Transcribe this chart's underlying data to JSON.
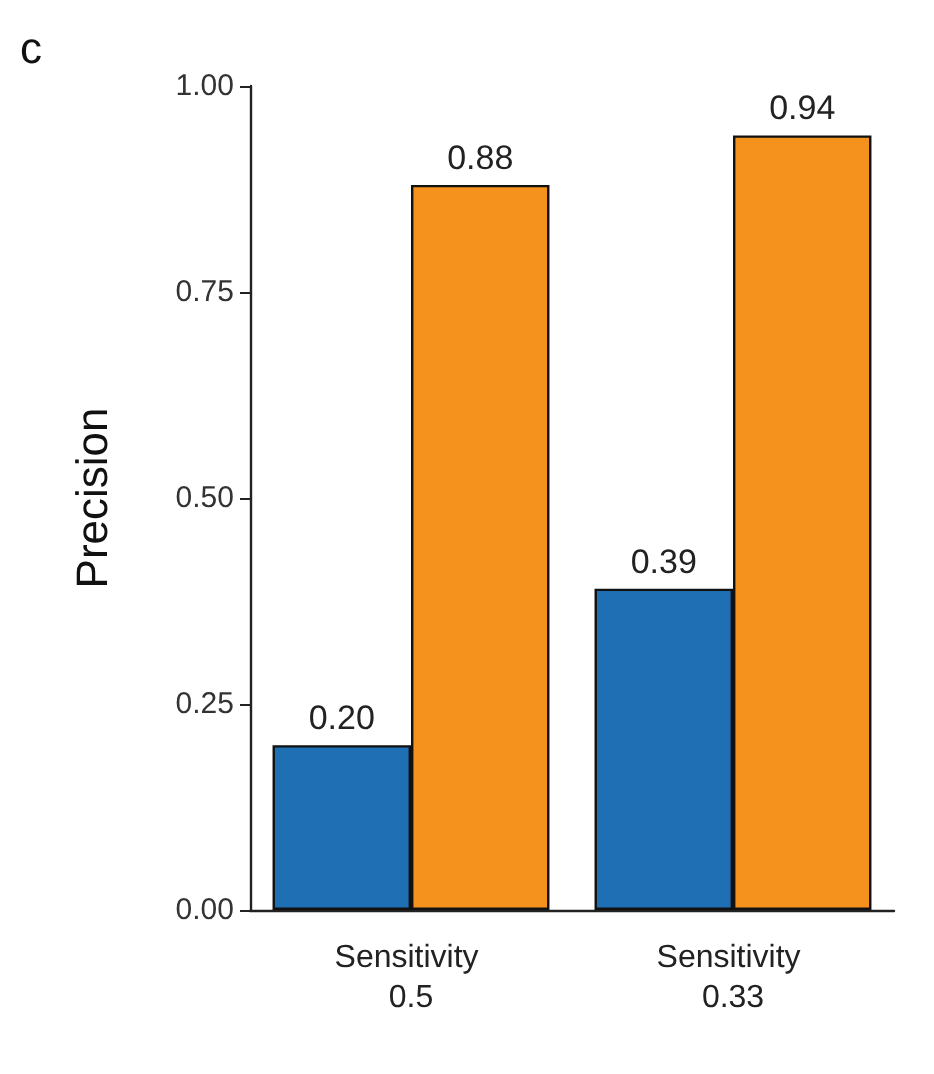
{
  "chart_data": {
    "type": "bar",
    "title": "c",
    "ylabel": "Precision",
    "categories": [
      "Sensitivity 0.5",
      "Sensitivity 0.33"
    ],
    "series": [
      {
        "color": "#1f6fb4",
        "values": [
          0.2,
          0.39
        ],
        "value_labels": [
          "0.20",
          "0.39"
        ]
      },
      {
        "color": "#f5921e",
        "values": [
          0.88,
          0.94
        ],
        "value_labels": [
          "0.88",
          "0.94"
        ]
      }
    ],
    "ylim": [
      0,
      1
    ],
    "yticks": [
      {
        "value": 0,
        "label": "0.00"
      },
      {
        "value": 0.25,
        "label": "0.25"
      },
      {
        "value": 0.5,
        "label": "0.50"
      },
      {
        "value": 0.75,
        "label": "0.75"
      },
      {
        "value": 1,
        "label": "1.00"
      }
    ],
    "grid": false
  }
}
